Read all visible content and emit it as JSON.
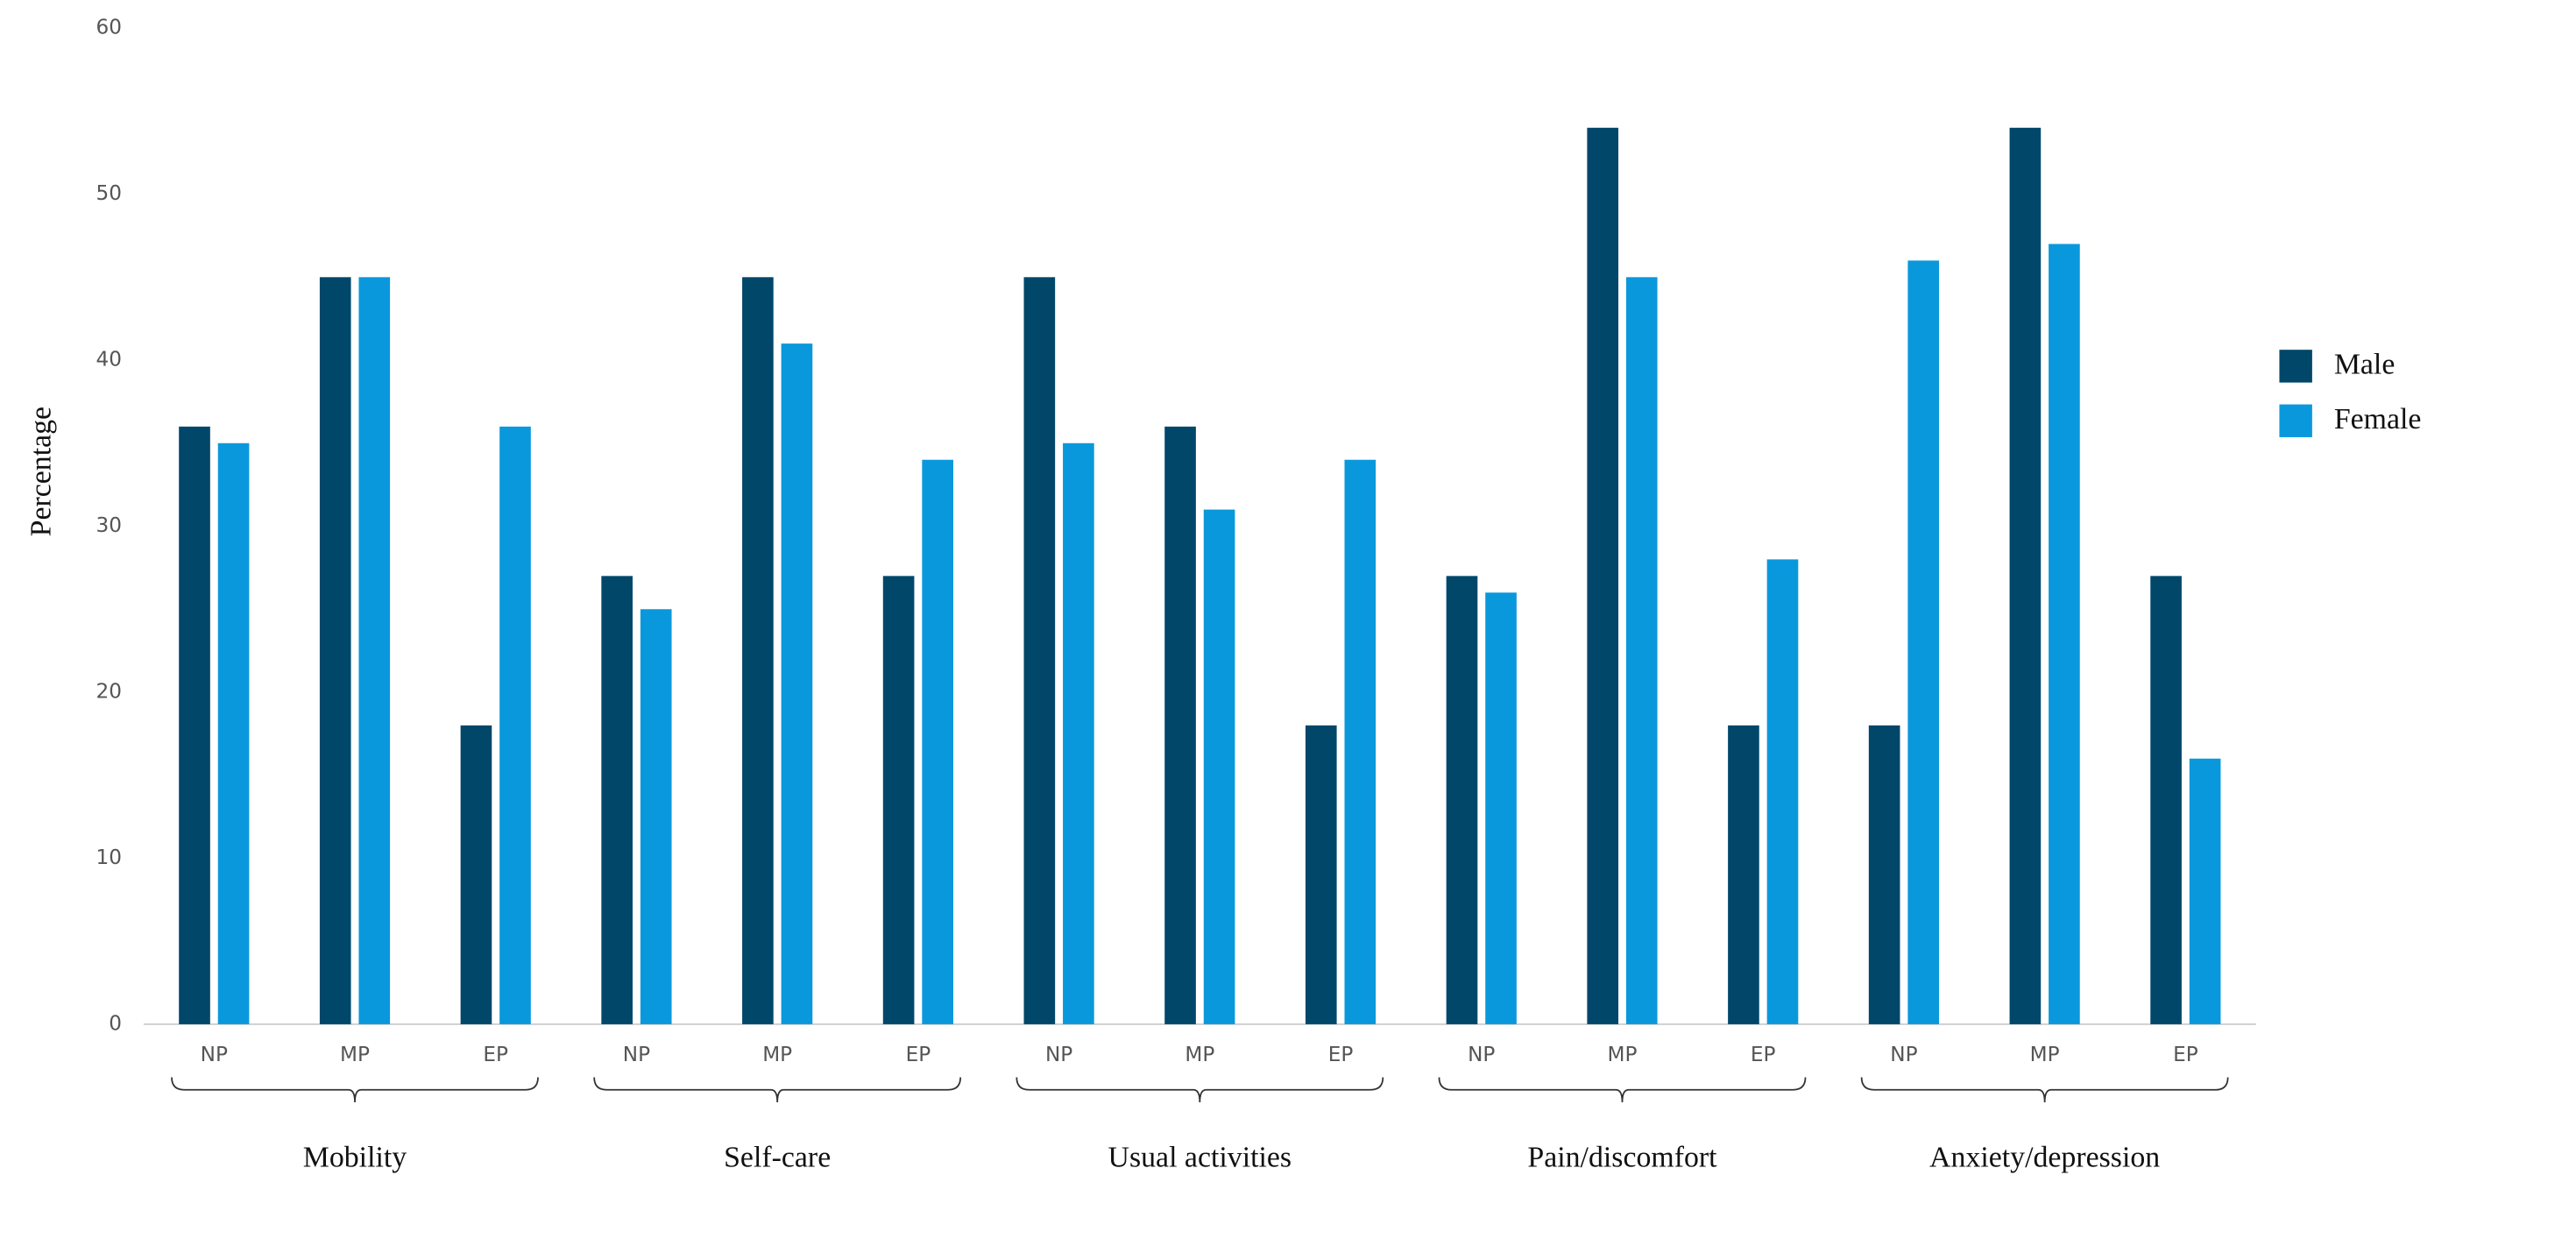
{
  "chart_data": {
    "type": "bar",
    "y_label": "Percentage",
    "categories": [
      "NP",
      "MP",
      "EP",
      "NP",
      "MP",
      "EP",
      "NP",
      "MP",
      "EP",
      "NP",
      "MP",
      "EP",
      "NP",
      "MP",
      "EP"
    ],
    "groups": [
      "Mobility",
      "Self-care",
      "Usual activities",
      "Pain/discomfort",
      "Anxiety/depression"
    ],
    "series": [
      {
        "name": "Male",
        "color": "#00476a",
        "values": [
          36,
          45,
          18,
          27,
          45,
          27,
          45,
          36,
          18,
          27,
          54,
          18,
          18,
          54,
          27
        ]
      },
      {
        "name": "Female",
        "color": "#0a98dc",
        "values": [
          35,
          45,
          36,
          25,
          41,
          34,
          35,
          31,
          34,
          26,
          45,
          28,
          46,
          47,
          16
        ]
      }
    ],
    "ylim": [
      0,
      60
    ],
    "yticks": [
      0,
      10,
      20,
      30,
      40,
      50,
      60
    ],
    "grid": false,
    "legend": "right"
  }
}
